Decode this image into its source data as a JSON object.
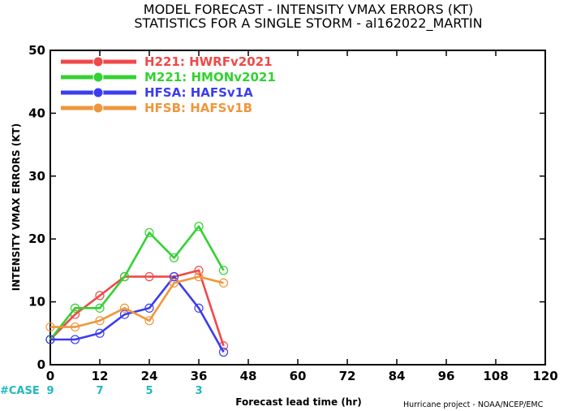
{
  "page": {
    "title_line1": "MODEL FORECAST - INTENSITY VMAX ERRORS (KT)",
    "title_line2": "STATISTICS FOR A SINGLE STORM - al162022_MARTIN",
    "case_label": "#CASE",
    "credit": "Hurricane project - NOAA/NCEP/EMC"
  },
  "chart_data": {
    "type": "line",
    "title": "MODEL FORECAST - INTENSITY VMAX ERRORS (KT)",
    "subtitle": "STATISTICS FOR A SINGLE STORM - al162022_MARTIN",
    "xlabel": "Forecast lead time (hr)",
    "ylabel": "INTENSITY VMAX ERRORS (KT)",
    "xlim": [
      0,
      120
    ],
    "ylim": [
      0,
      50
    ],
    "xticks": [
      0,
      12,
      24,
      36,
      48,
      60,
      72,
      84,
      96,
      108,
      120
    ],
    "yticks": [
      0,
      10,
      20,
      30,
      40,
      50
    ],
    "grid": false,
    "legend_position": "top-left",
    "series": [
      {
        "name": "H221: HWRFv2021",
        "color": "#f04848",
        "x": [
          0,
          6,
          12,
          18,
          24,
          30,
          36,
          42
        ],
        "y": [
          4,
          8,
          11,
          14,
          14,
          14,
          15,
          3
        ]
      },
      {
        "name": "M221: HMONv2021",
        "color": "#32d232",
        "x": [
          0,
          6,
          12,
          18,
          24,
          30,
          36,
          42
        ],
        "y": [
          4,
          9,
          9,
          14,
          21,
          17,
          22,
          15
        ]
      },
      {
        "name": "HFSA: HAFSv1A",
        "color": "#3c3cf0",
        "x": [
          0,
          6,
          12,
          18,
          24,
          30,
          36,
          42
        ],
        "y": [
          4,
          4,
          5,
          8,
          9,
          14,
          9,
          2
        ]
      },
      {
        "name": "HFSB: HAFSv1B",
        "color": "#f0963c",
        "x": [
          0,
          6,
          12,
          18,
          24,
          30,
          36,
          42
        ],
        "y": [
          6,
          6,
          7,
          9,
          7,
          13,
          14,
          13
        ]
      }
    ],
    "cases": [
      {
        "x": 0,
        "count": "9"
      },
      {
        "x": 12,
        "count": "7"
      },
      {
        "x": 24,
        "count": "5"
      },
      {
        "x": 36,
        "count": "3"
      }
    ]
  }
}
